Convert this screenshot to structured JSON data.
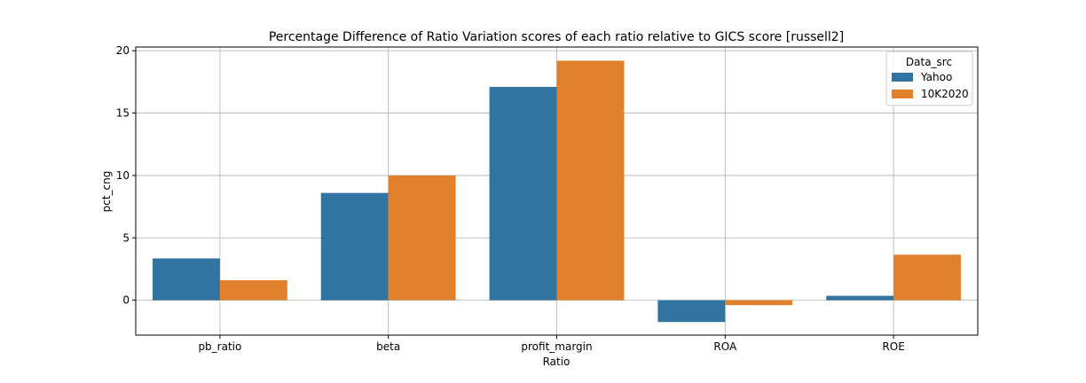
{
  "chart_data": {
    "type": "bar",
    "title": "Percentage Difference of Ratio Variation scores of each ratio relative to GICS score [russell2]",
    "xlabel": "Ratio",
    "ylabel": "pct_cng",
    "categories": [
      "pb_ratio",
      "beta",
      "profit_margin",
      "ROA",
      "ROE"
    ],
    "series": [
      {
        "name": "Yahoo",
        "color": "#3274a1",
        "values": [
          3.35,
          8.6,
          17.1,
          -1.75,
          0.35
        ]
      },
      {
        "name": "10K2020",
        "color": "#e1812c",
        "values": [
          1.6,
          10.0,
          19.2,
          -0.4,
          3.65
        ]
      }
    ],
    "ylim": [
      -2.8,
      20.3
    ],
    "yticks": [
      0,
      5,
      10,
      15,
      20
    ],
    "grid": true,
    "legend": {
      "title": "Data_src",
      "placement": "top-right"
    }
  }
}
